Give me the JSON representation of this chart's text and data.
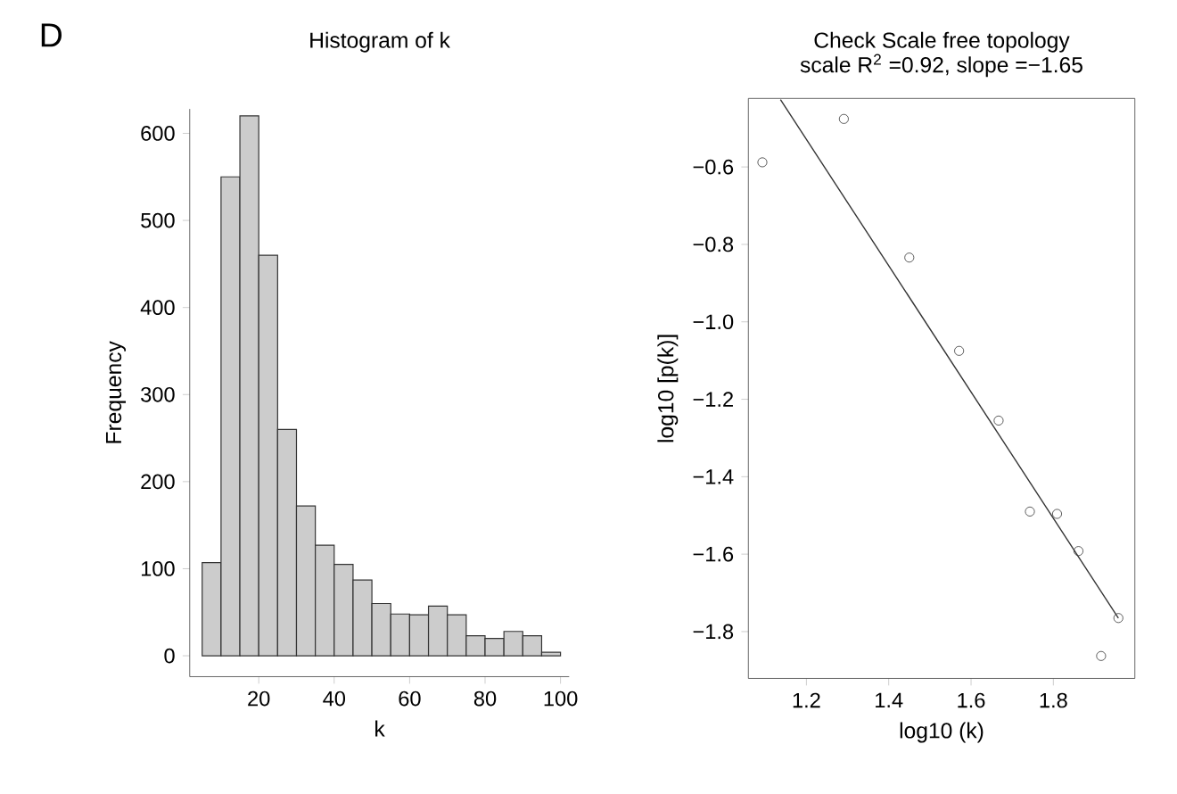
{
  "chart_data": [
    {
      "type": "histogram",
      "title": "Histogram of k",
      "xlabel": "k",
      "ylabel": "Frequency",
      "annotations": [
        "D"
      ],
      "color": "#cccccc",
      "bins": [
        5,
        10,
        15,
        20,
        25,
        30,
        35,
        40,
        45,
        50,
        55,
        60,
        65,
        70,
        75,
        80,
        85,
        90,
        95,
        100
      ],
      "values": [
        107,
        550,
        620,
        460,
        260,
        172,
        127,
        105,
        87,
        60,
        48,
        47,
        57,
        47,
        23,
        20,
        28,
        23,
        4
      ],
      "xlim": [
        1.7,
        102.3
      ],
      "ylim": [
        -24,
        628
      ],
      "xticks": [
        20,
        40,
        60,
        80,
        100
      ],
      "yticks": [
        0,
        100,
        200,
        300,
        400,
        500,
        600
      ]
    },
    {
      "type": "scatter",
      "title": "Check Scale free topology",
      "subtitle": "scale R$^{2}$ =0.92, slope =−1.65",
      "xlabel": "log10 (k)",
      "ylabel": "log10 [p(k)]",
      "series": [
        {
          "type": "scatter",
          "color": "#333333",
          "marker": "circle",
          "x": [
            1.093,
            1.291,
            1.45,
            1.571,
            1.667,
            1.743,
            1.809,
            1.861,
            1.916,
            1.958
          ],
          "values": [
            -0.588,
            -0.476,
            -0.834,
            -1.075,
            -1.255,
            -1.49,
            -1.496,
            -1.592,
            -1.863,
            -1.765
          ]
        },
        {
          "type": "line",
          "color": "#333333",
          "x": [
            1.137,
            1.958
          ],
          "values": [
            -0.426,
            -1.765
          ]
        }
      ],
      "xlim": [
        1.059,
        1.998
      ],
      "ylim": [
        -1.921,
        -0.423
      ],
      "xticks": [
        1.2,
        1.4,
        1.6,
        1.8
      ],
      "yticks": [
        {
          "value": -1.8,
          "label": "−1.8"
        },
        {
          "value": -1.6,
          "label": "−1.6"
        },
        {
          "value": -1.4,
          "label": "−1.4"
        },
        {
          "value": -1.2,
          "label": "−1.2"
        },
        {
          "value": -1.0,
          "label": "−1.0"
        },
        {
          "value": -0.8,
          "label": "−0.8"
        },
        {
          "value": -0.6,
          "label": "−0.6"
        }
      ]
    }
  ]
}
